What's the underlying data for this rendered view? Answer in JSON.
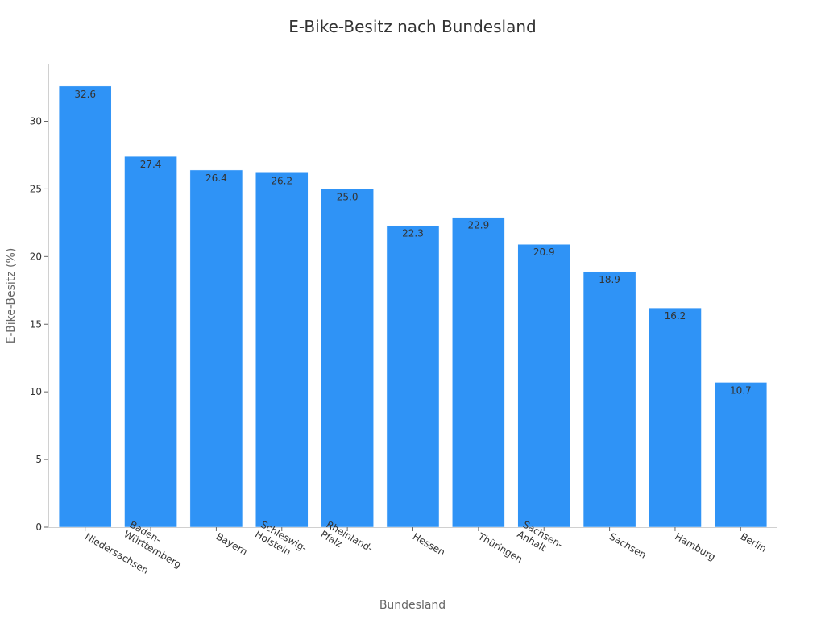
{
  "chart_data": {
    "type": "bar",
    "title": "E-Bike-Besitz nach Bundesland",
    "xlabel": "Bundesland",
    "ylabel": "E-Bike-Besitz (%)",
    "categories": [
      [
        "Niedersachsen"
      ],
      [
        "Baden-",
        "Württemberg"
      ],
      [
        "Bayern"
      ],
      [
        "Schleswig-",
        "Holstein"
      ],
      [
        "Rheinland-",
        "Pfalz"
      ],
      [
        "Hessen"
      ],
      [
        "Thüringen"
      ],
      [
        "Sachsen-",
        "Anhalt"
      ],
      [
        "Sachsen"
      ],
      [
        "Hamburg"
      ],
      [
        "Berlin"
      ]
    ],
    "values": [
      32.6,
      27.4,
      26.4,
      26.2,
      25.0,
      22.3,
      22.9,
      20.9,
      18.9,
      16.2,
      10.7
    ],
    "data_labels": [
      "32.6",
      "27.4",
      "26.4",
      "26.2",
      "25.0",
      "22.3",
      "22.9",
      "20.9",
      "18.9",
      "16.2",
      "10.7"
    ],
    "yticks": [
      0,
      5,
      10,
      15,
      20,
      25,
      30
    ],
    "ylim": [
      0,
      34.2
    ],
    "bar_color": "#2f93f6",
    "grid": false,
    "legend": "none"
  }
}
